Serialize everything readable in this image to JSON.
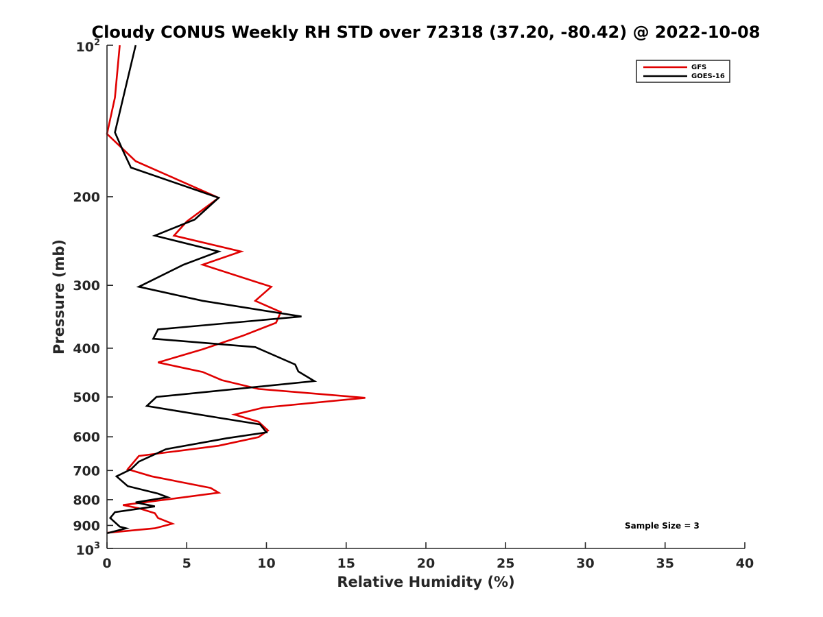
{
  "chart_data": {
    "type": "line",
    "orientation": "profile",
    "title": "Cloudy CONUS Weekly RH STD over 72318 (37.20, -80.42) @ 2022-10-08",
    "xlabel": "Relative Humidity (%)",
    "ylabel": "Pressure (mb)",
    "xlim": [
      0,
      40
    ],
    "ylim": [
      100,
      1000
    ],
    "yscale": "log",
    "y_reversed": true,
    "x_ticks": [
      "0",
      "5",
      "10",
      "15",
      "20",
      "25",
      "30",
      "35",
      "40"
    ],
    "y_ticks": [
      {
        "base": "10",
        "exp": "2",
        "label": ""
      },
      {
        "label": "200"
      },
      {
        "label": "300"
      },
      {
        "label": "400"
      },
      {
        "label": "500"
      },
      {
        "label": "600"
      },
      {
        "label": "700"
      },
      {
        "label": "800"
      },
      {
        "label": "900"
      },
      {
        "base": "10",
        "exp": "3",
        "label": ""
      }
    ],
    "legend": {
      "position": "top-right"
    },
    "annotation": "Sample Size = 3",
    "series": [
      {
        "name": "GFS",
        "color": "#e00000",
        "points": [
          [
            0.8,
            100
          ],
          [
            0.5,
            127
          ],
          [
            0.0,
            150
          ],
          [
            1.8,
            170
          ],
          [
            7.0,
            201
          ],
          [
            5.0,
            224
          ],
          [
            4.2,
            239
          ],
          [
            8.4,
            257
          ],
          [
            6.0,
            273
          ],
          [
            10.3,
            302
          ],
          [
            9.3,
            322
          ],
          [
            10.9,
            339
          ],
          [
            10.6,
            356
          ],
          [
            8.5,
            378
          ],
          [
            6.0,
            402
          ],
          [
            3.2,
            427
          ],
          [
            6.0,
            446
          ],
          [
            7.2,
            463
          ],
          [
            9.5,
            482
          ],
          [
            16.2,
            502
          ],
          [
            9.8,
            525
          ],
          [
            8.0,
            542
          ],
          [
            9.5,
            560
          ],
          [
            10.1,
            583
          ],
          [
            9.5,
            601
          ],
          [
            7.0,
            625
          ],
          [
            2.0,
            655
          ],
          [
            1.3,
            696
          ],
          [
            2.8,
            719
          ],
          [
            6.5,
            758
          ],
          [
            7.0,
            775
          ],
          [
            3.5,
            801
          ],
          [
            1.0,
            820
          ],
          [
            2.0,
            832
          ],
          [
            3.0,
            851
          ],
          [
            3.2,
            870
          ],
          [
            4.1,
            893
          ],
          [
            3.0,
            912
          ],
          [
            0.0,
            931
          ]
        ]
      },
      {
        "name": "GOES-16",
        "color": "#000000",
        "points": [
          [
            1.8,
            100
          ],
          [
            0.5,
            149
          ],
          [
            1.0,
            162
          ],
          [
            1.5,
            175
          ],
          [
            7.0,
            201
          ],
          [
            5.5,
            222
          ],
          [
            3.0,
            239
          ],
          [
            7.0,
            257
          ],
          [
            4.8,
            273
          ],
          [
            2.0,
            302
          ],
          [
            6.0,
            322
          ],
          [
            12.2,
            346
          ],
          [
            3.2,
            367
          ],
          [
            2.9,
            383
          ],
          [
            9.3,
            398
          ],
          [
            11.8,
            431
          ],
          [
            12.0,
            445
          ],
          [
            13.0,
            465
          ],
          [
            3.1,
            500
          ],
          [
            2.5,
            521
          ],
          [
            7.0,
            550
          ],
          [
            9.6,
            567
          ],
          [
            10.0,
            588
          ],
          [
            7.5,
            604
          ],
          [
            3.7,
            635
          ],
          [
            2.0,
            672
          ],
          [
            1.5,
            696
          ],
          [
            0.6,
            719
          ],
          [
            1.3,
            752
          ],
          [
            3.2,
            778
          ],
          [
            3.8,
            791
          ],
          [
            1.8,
            810
          ],
          [
            3.0,
            825
          ],
          [
            0.5,
            847
          ],
          [
            0.2,
            870
          ],
          [
            0.8,
            905
          ],
          [
            1.2,
            912
          ],
          [
            0.0,
            933
          ]
        ]
      }
    ]
  }
}
